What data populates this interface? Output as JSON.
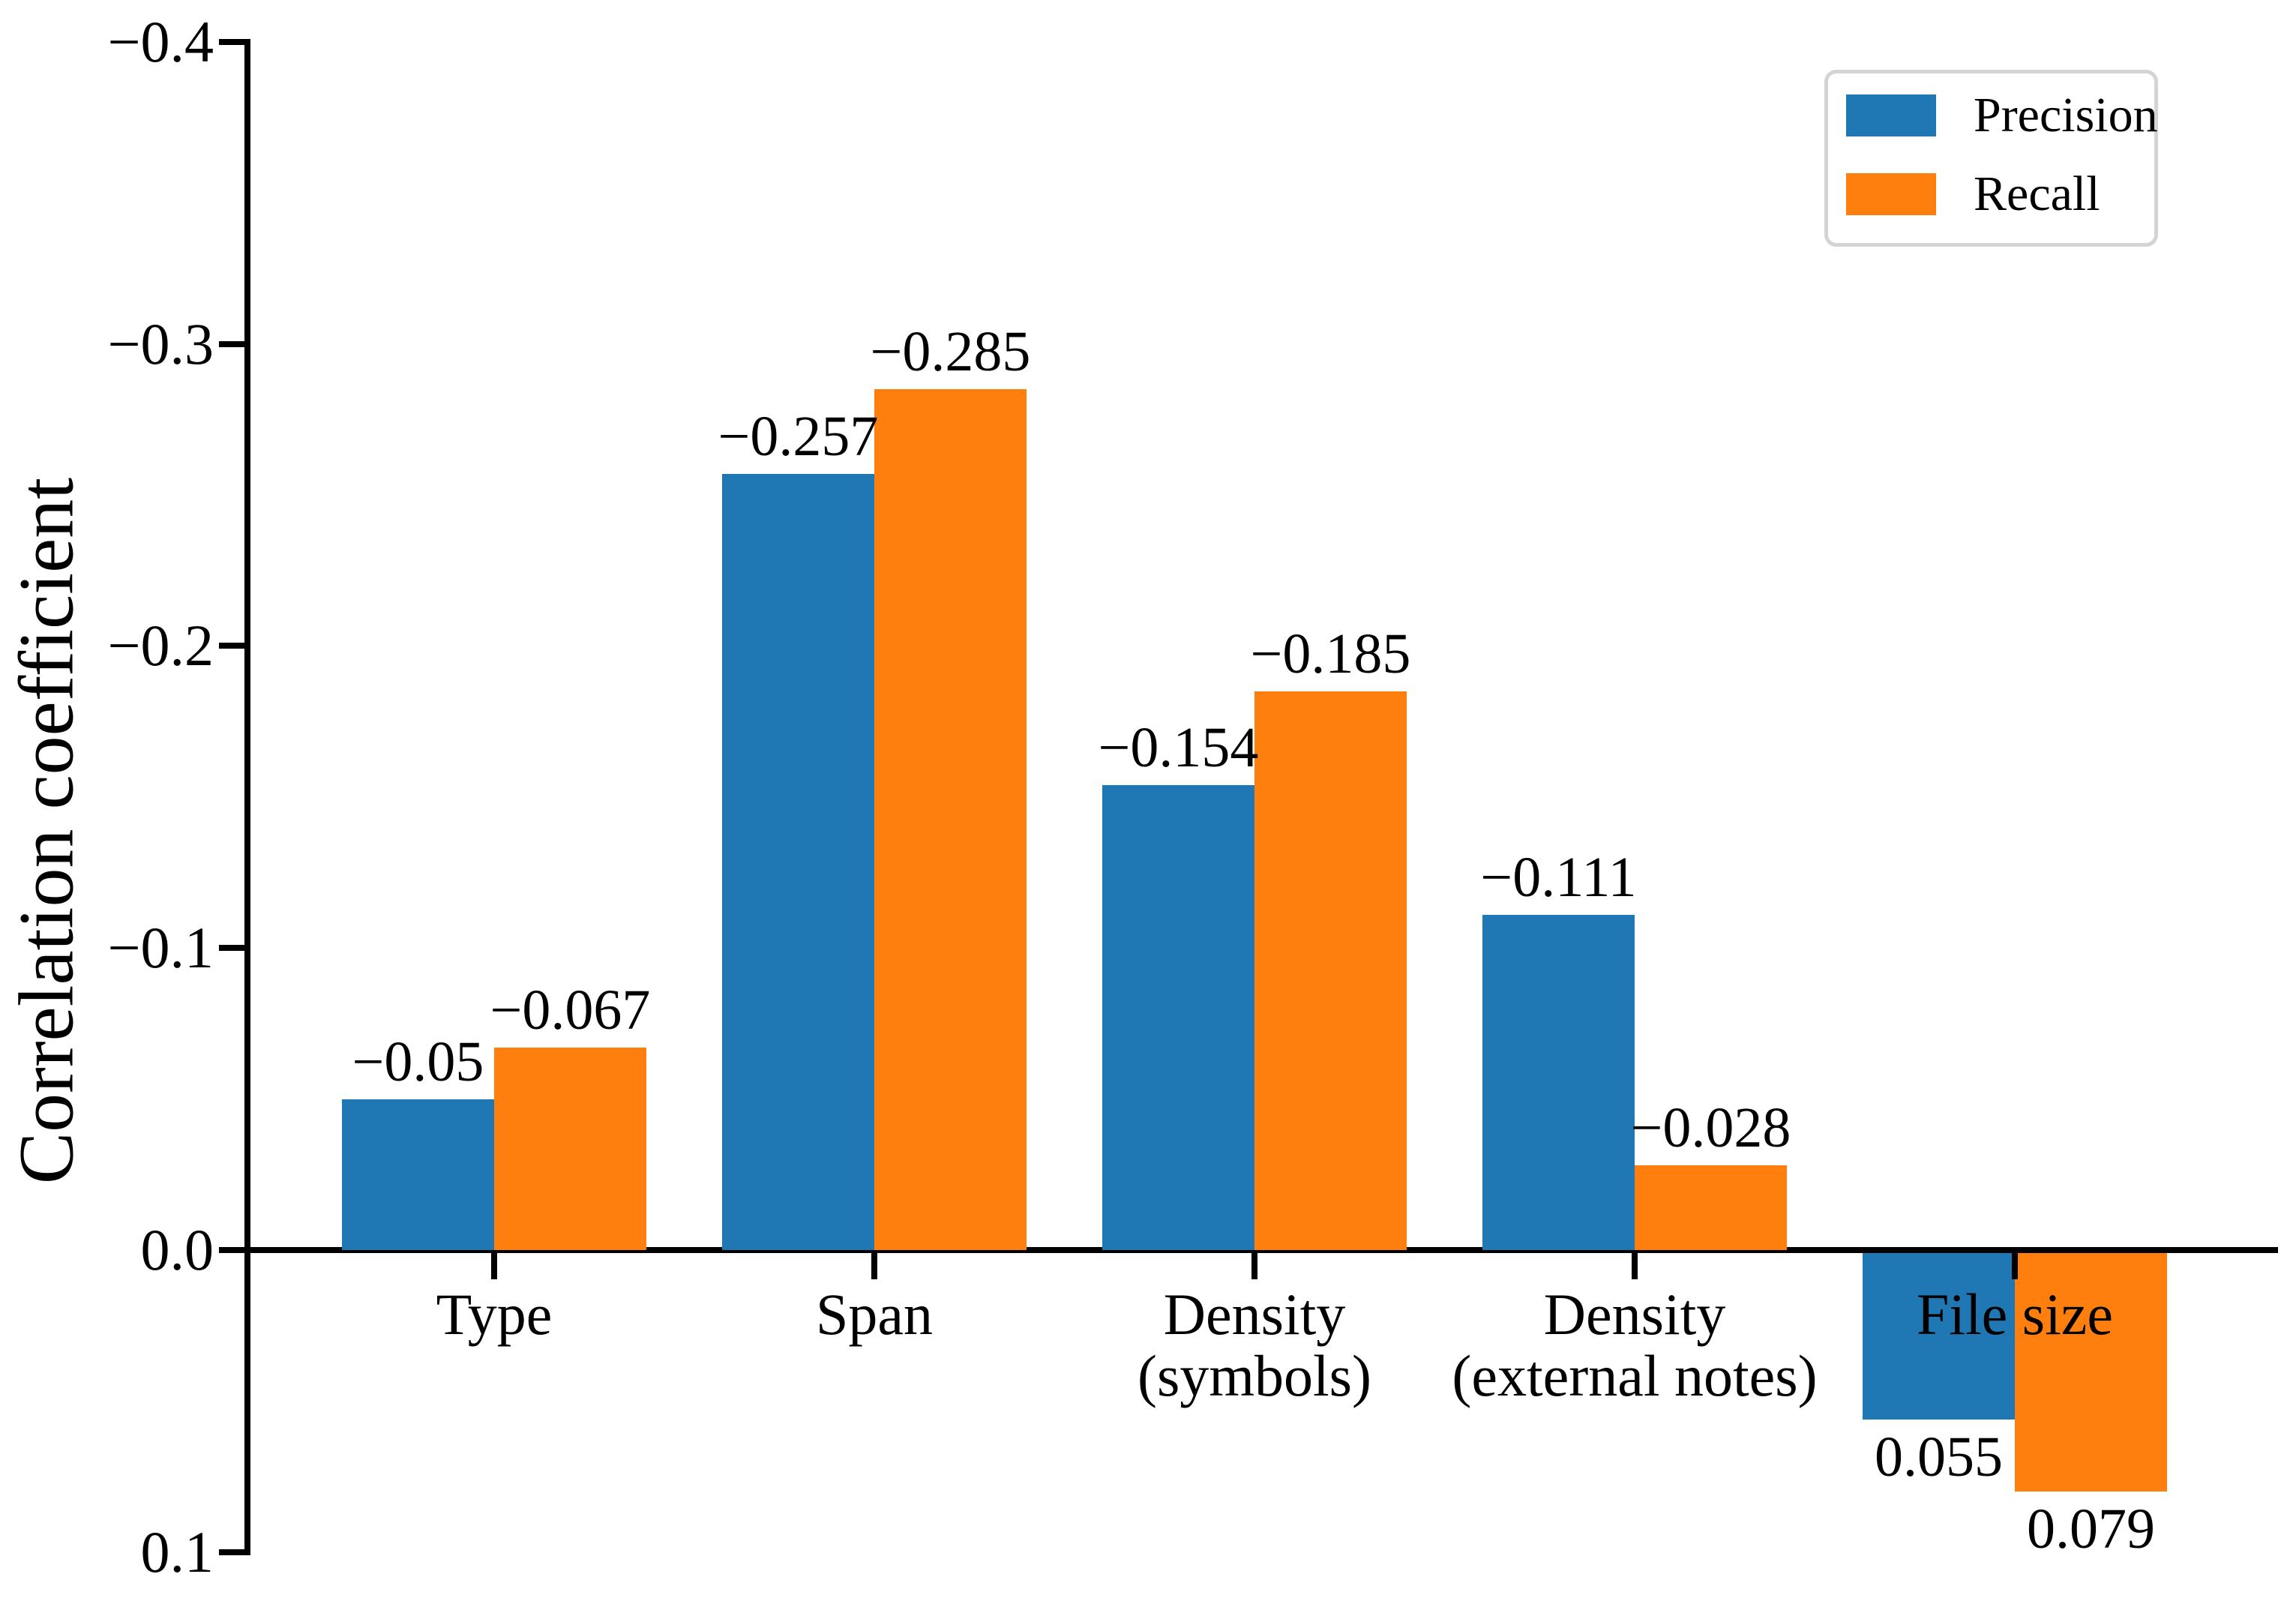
{
  "figure": {
    "ylabel": "Correlation coefficient",
    "background": "#ffffff",
    "axis_color": "#000000",
    "text_color": "#000000"
  },
  "legend": {
    "position": "upper right",
    "border_color": "#d4d4d4",
    "items": [
      {
        "label": "Precision",
        "color": "#1f77b4",
        "swatch": "filled-rect"
      },
      {
        "label": "Recall",
        "color": "#ff7f0e",
        "swatch": "filled-rect"
      }
    ]
  },
  "y_axis": {
    "inverted": true,
    "min": -0.4,
    "max": 0.1,
    "ticks": [
      {
        "value": -0.4,
        "label": "−0.4"
      },
      {
        "value": -0.3,
        "label": "−0.3"
      },
      {
        "value": -0.2,
        "label": "−0.2"
      },
      {
        "value": -0.1,
        "label": "−0.1"
      },
      {
        "value": 0.0,
        "label": "0.0"
      },
      {
        "value": 0.1,
        "label": "0.1"
      }
    ]
  },
  "chart_data": {
    "type": "bar",
    "title": "",
    "xlabel": "",
    "ylabel": "Correlation coefficient",
    "grid": false,
    "legend_position": "upper right",
    "ylim": [
      -0.4,
      0.1
    ],
    "y_inverted": true,
    "categories": [
      "Type",
      "Span",
      "Density\n(symbols)",
      "Density\n(external notes)",
      "File size"
    ],
    "series": [
      {
        "name": "Precision",
        "color": "#1f77b4",
        "values": [
          -0.05,
          -0.257,
          -0.154,
          -0.111,
          0.055
        ],
        "labels": [
          "−0.05",
          "−0.257",
          "−0.154",
          "−0.111",
          "0.055"
        ]
      },
      {
        "name": "Recall",
        "color": "#ff7f0e",
        "values": [
          -0.067,
          -0.285,
          -0.185,
          -0.028,
          0.079
        ],
        "labels": [
          "−0.067",
          "−0.285",
          "−0.185",
          "−0.028",
          "0.079"
        ]
      }
    ]
  }
}
